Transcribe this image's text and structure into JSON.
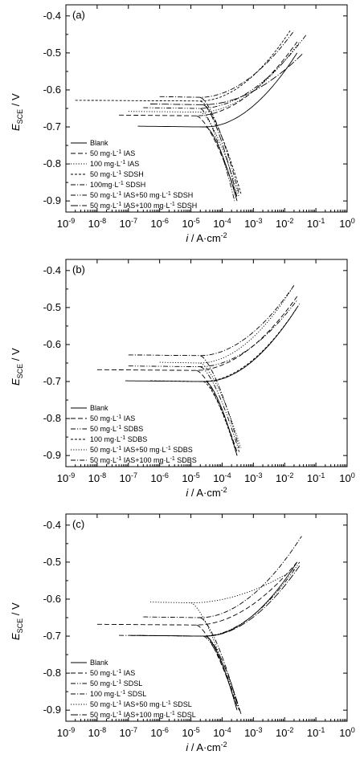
{
  "chart_data": [
    {
      "type": "line",
      "panel_label": "(a)",
      "x_scale": "log",
      "xlim": [
        1e-09,
        1
      ],
      "ylim": [
        -0.93,
        -0.37
      ],
      "x_ticks": [
        1e-09,
        1e-08,
        1e-07,
        1e-06,
        1e-05,
        0.0001,
        0.001,
        0.01,
        0.1,
        1
      ],
      "y_ticks": [
        -0.9,
        -0.8,
        -0.7,
        -0.6,
        -0.5,
        -0.4
      ],
      "y_tick_labels": [
        "-0.9",
        "-0.8",
        "-0.7",
        "-0.6",
        "-0.5",
        "-0.4"
      ],
      "xlabel": "i / A·cm⁻²",
      "ylabel": "E_SCE / V",
      "legend_position": "bottom-left",
      "series": [
        {
          "name": "Blank",
          "style": "solid",
          "ecorr": -0.7,
          "icorr": 3e-05,
          "anodic_end": [
            0.025,
            -0.5
          ],
          "cathodic_end": [
            0.0003,
            -0.9
          ],
          "start_i": 2e-07
        },
        {
          "name": "50 mg·L⁻¹ IAS",
          "style": "dash",
          "ecorr": -0.67,
          "icorr": 1.5e-05,
          "anodic_end": [
            0.025,
            -0.47
          ],
          "cathodic_end": [
            0.0003,
            -0.89
          ],
          "start_i": 5e-08
        },
        {
          "name": "100 mg·L⁻¹ IAS",
          "style": "dot",
          "ecorr": -0.66,
          "icorr": 2e-05,
          "anodic_end": [
            0.03,
            -0.47
          ],
          "cathodic_end": [
            0.00035,
            -0.89
          ],
          "start_i": 1e-07
        },
        {
          "name": "50 mg·L⁻¹ SDSH",
          "style": "shortdash",
          "ecorr": -0.63,
          "icorr": 2e-05,
          "anodic_end": [
            0.015,
            -0.44
          ],
          "cathodic_end": [
            0.0004,
            -0.88
          ],
          "start_i": 2e-09
        },
        {
          "name": "100mg·L⁻¹ SDSH",
          "style": "dashdot",
          "ecorr": -0.62,
          "icorr": 2e-05,
          "anodic_end": [
            0.02,
            -0.44
          ],
          "cathodic_end": [
            0.00035,
            -0.88
          ],
          "start_i": 1e-06
        },
        {
          "name": "50 mg·L⁻¹ IAS+50 mg·L⁻¹ SDSH",
          "style": "dashdotdot",
          "ecorr": -0.65,
          "icorr": 2e-05,
          "anodic_end": [
            0.05,
            -0.45
          ],
          "cathodic_end": [
            0.00025,
            -0.9
          ],
          "start_i": 3e-07
        },
        {
          "name": "50 mg·L⁻¹ IAS+100 mg·L⁻¹ SDSH",
          "style": "dashdotlong",
          "ecorr": -0.64,
          "icorr": 2.5e-05,
          "anodic_end": [
            0.04,
            -0.5
          ],
          "cathodic_end": [
            0.0003,
            -0.89
          ],
          "start_i": 5e-07
        }
      ]
    },
    {
      "type": "line",
      "panel_label": "(b)",
      "x_scale": "log",
      "xlim": [
        1e-09,
        1
      ],
      "ylim": [
        -0.93,
        -0.37
      ],
      "x_ticks": [
        1e-09,
        1e-08,
        1e-07,
        1e-06,
        1e-05,
        0.0001,
        0.001,
        0.01,
        0.1,
        1
      ],
      "y_ticks": [
        -0.9,
        -0.8,
        -0.7,
        -0.6,
        -0.5,
        -0.4
      ],
      "y_tick_labels": [
        "-0.9",
        "-0.8",
        "-0.7",
        "-0.6",
        "-0.5",
        "-0.4"
      ],
      "xlabel": "i / A·cm⁻²",
      "ylabel": "E_SCE / V",
      "legend_position": "bottom-left",
      "series": [
        {
          "name": "Blank",
          "style": "solid",
          "ecorr": -0.7,
          "icorr": 3e-05,
          "anodic_end": [
            0.025,
            -0.5
          ],
          "cathodic_end": [
            0.0003,
            -0.9
          ],
          "start_i": 8e-08
        },
        {
          "name": "50 mg·L⁻¹ IAS",
          "style": "dash",
          "ecorr": -0.67,
          "icorr": 1.5e-05,
          "anodic_end": [
            0.025,
            -0.47
          ],
          "cathodic_end": [
            0.0003,
            -0.89
          ],
          "start_i": 1e-08
        },
        {
          "name": "50 mg·L⁻¹ SDBS",
          "style": "dashdotdot",
          "ecorr": -0.66,
          "icorr": 2e-05,
          "anodic_end": [
            0.025,
            -0.48
          ],
          "cathodic_end": [
            0.00035,
            -0.89
          ],
          "start_i": 1e-07
        },
        {
          "name": "100 mg·L⁻¹ SDBS",
          "style": "shortdash",
          "ecorr": -0.7,
          "icorr": 2.5e-05,
          "anodic_end": [
            0.03,
            -0.49
          ],
          "cathodic_end": [
            0.0003,
            -0.9
          ],
          "start_i": 5e-07
        },
        {
          "name": "50 mg·L⁻¹ IAS+50 mg·L⁻¹ SDBS",
          "style": "dot",
          "ecorr": -0.65,
          "icorr": 2e-05,
          "anodic_end": [
            0.02,
            -0.44
          ],
          "cathodic_end": [
            0.0004,
            -0.88
          ],
          "start_i": 1e-06
        },
        {
          "name": "50 mg·L⁻¹ IAS+100 mg·L⁻¹ SDBS",
          "style": "dashdot",
          "ecorr": -0.63,
          "icorr": 2e-05,
          "anodic_end": [
            0.02,
            -0.44
          ],
          "cathodic_end": [
            0.00035,
            -0.88
          ],
          "start_i": 1e-07
        }
      ]
    },
    {
      "type": "line",
      "panel_label": "(c)",
      "x_scale": "log",
      "xlim": [
        1e-09,
        1
      ],
      "ylim": [
        -0.93,
        -0.37
      ],
      "x_ticks": [
        1e-09,
        1e-08,
        1e-07,
        1e-06,
        1e-05,
        0.0001,
        0.001,
        0.01,
        0.1,
        1
      ],
      "y_ticks": [
        -0.9,
        -0.8,
        -0.7,
        -0.6,
        -0.5,
        -0.4
      ],
      "y_tick_labels": [
        "-0.9",
        "-0.8",
        "-0.7",
        "-0.6",
        "-0.5",
        "-0.4"
      ],
      "xlabel": "i / A·cm⁻²",
      "ylabel": "E_SCE / V",
      "legend_position": "bottom-left",
      "series": [
        {
          "name": "Blank",
          "style": "solid",
          "ecorr": -0.7,
          "icorr": 3e-05,
          "anodic_end": [
            0.025,
            -0.5
          ],
          "cathodic_end": [
            0.0003,
            -0.9
          ],
          "start_i": 1e-07
        },
        {
          "name": "50 mg·L⁻¹ IAS",
          "style": "dash",
          "ecorr": -0.67,
          "icorr": 1.5e-05,
          "anodic_end": [
            0.025,
            -0.5
          ],
          "cathodic_end": [
            0.0003,
            -0.89
          ],
          "start_i": 1e-08
        },
        {
          "name": "50 mg·L⁻¹ SDSL",
          "style": "dashdotdot",
          "ecorr": -0.7,
          "icorr": 2.5e-05,
          "anodic_end": [
            0.03,
            -0.5
          ],
          "cathodic_end": [
            0.00035,
            -0.9
          ],
          "start_i": 5e-08
        },
        {
          "name": "100 mg·L⁻¹ SDSL",
          "style": "dashdot",
          "ecorr": -0.65,
          "icorr": 2e-05,
          "anodic_end": [
            0.035,
            -0.43
          ],
          "cathodic_end": [
            0.00035,
            -0.9
          ],
          "start_i": 3e-07
        },
        {
          "name": "50 mg·L⁻¹ IAS+50 mg·L⁻¹ SDSL",
          "style": "dot",
          "ecorr": -0.61,
          "icorr": 1e-05,
          "anodic_end": [
            0.02,
            -0.52
          ],
          "cathodic_end": [
            0.0003,
            -0.9
          ],
          "start_i": 5e-07
        },
        {
          "name": "50 mg·L⁻¹ IAS+100 mg·L⁻¹ SDSL",
          "style": "dashdotlong",
          "ecorr": -0.7,
          "icorr": 3e-05,
          "anodic_end": [
            0.03,
            -0.51
          ],
          "cathodic_end": [
            0.0004,
            -0.91
          ],
          "start_i": 2e-07
        }
      ]
    }
  ]
}
